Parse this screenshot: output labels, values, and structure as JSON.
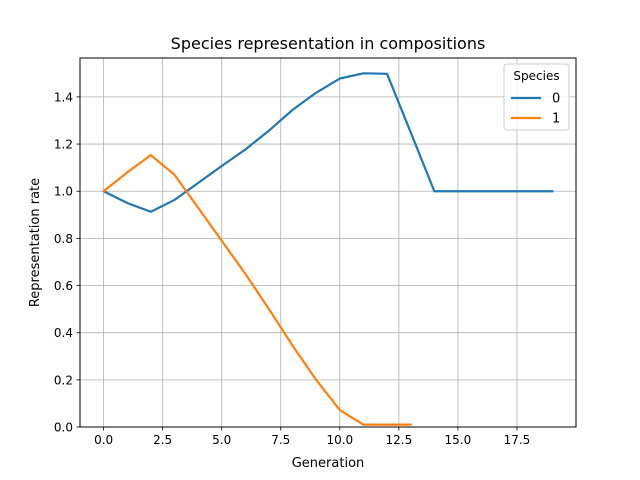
{
  "chart_data": {
    "type": "line",
    "title": "Species representation in compositions",
    "xlabel": "Generation",
    "ylabel": "Representation rate",
    "xlim": [
      -1,
      20
    ],
    "ylim": [
      0,
      1.565
    ],
    "xticks": [
      0,
      2.5,
      5,
      7.5,
      10,
      12.5,
      15,
      17.5
    ],
    "xtick_labels": [
      "0.0",
      "2.5",
      "5.0",
      "7.5",
      "10.0",
      "12.5",
      "15.0",
      "17.5"
    ],
    "yticks": [
      0,
      0.2,
      0.4,
      0.6,
      0.8,
      1.0,
      1.2,
      1.4
    ],
    "ytick_labels": [
      "0.0",
      "0.2",
      "0.4",
      "0.6",
      "0.8",
      "1.0",
      "1.2",
      "1.4"
    ],
    "grid": true,
    "legend": {
      "title": "Species",
      "placement": "top-right"
    },
    "series": [
      {
        "name": "0",
        "color": "#1f77b4",
        "x": [
          0,
          1,
          2,
          3,
          4,
          5,
          6,
          7,
          8,
          9,
          10,
          11,
          12,
          13,
          14,
          15,
          16,
          17,
          18,
          19
        ],
        "y": [
          1.0,
          0.95,
          0.913,
          0.963,
          1.035,
          1.107,
          1.177,
          1.257,
          1.345,
          1.418,
          1.478,
          1.5,
          1.498,
          1.25,
          1.0,
          1.0,
          1.0,
          1.0,
          1.0,
          1.0
        ]
      },
      {
        "name": "1",
        "color": "#ff7f0e",
        "x": [
          0,
          1,
          2,
          3,
          4,
          5,
          6,
          7,
          8,
          9,
          10,
          11,
          12,
          13
        ],
        "y": [
          1.0,
          1.08,
          1.153,
          1.07,
          0.93,
          0.79,
          0.65,
          0.5,
          0.345,
          0.2,
          0.072,
          0.01,
          0.01,
          0.01
        ]
      }
    ]
  }
}
